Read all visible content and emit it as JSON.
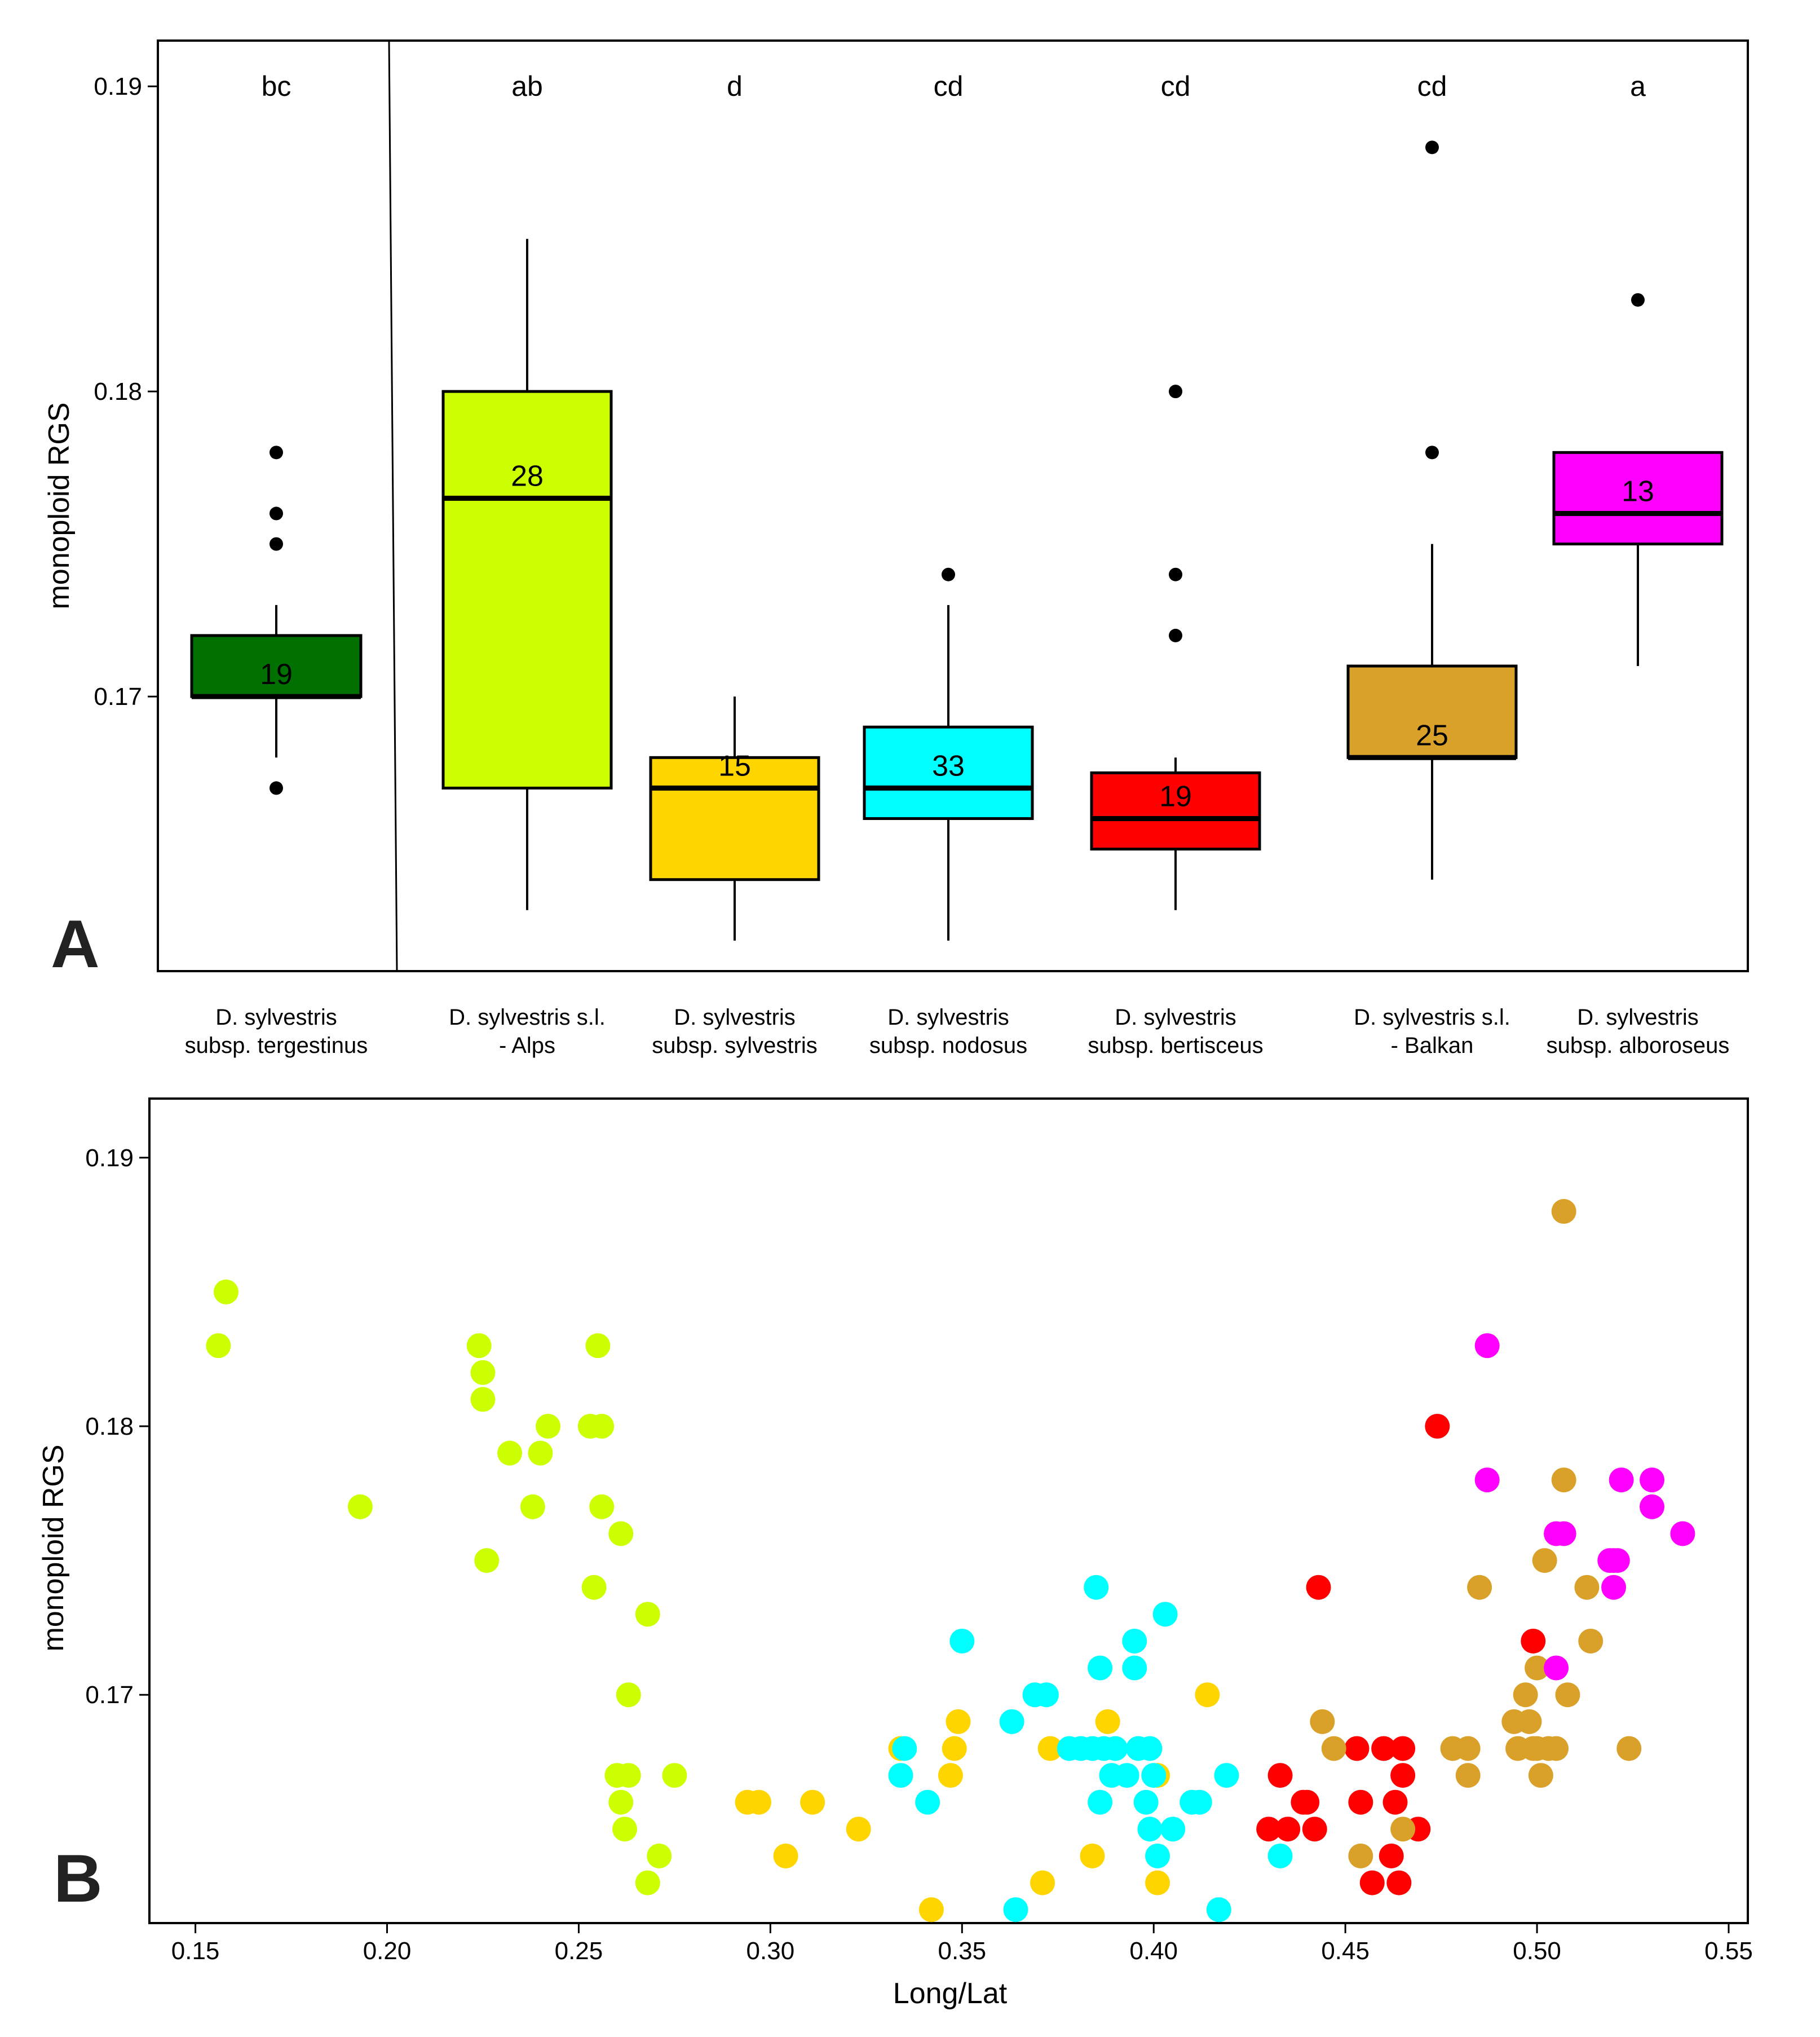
{
  "colors": {
    "tergestinus": "#007000",
    "alps": "#ccff00",
    "sylvestris": "#ffd500",
    "nodosus": "#00ffff",
    "bertisceus": "#ff0000",
    "balkan": "#d9a12a",
    "alboroseus": "#ff00ff"
  },
  "chart_data": [
    {
      "type": "box",
      "panel_label": "A",
      "xlabel": "",
      "ylabel": "monoploid RGS",
      "ylim": [
        0.161,
        0.1915
      ],
      "yticks": [
        "0.19",
        "0.18",
        "0.17"
      ],
      "ytick_values": [
        0.19,
        0.18,
        0.17
      ],
      "grid": false,
      "groups": [
        {
          "key": "tergestinus",
          "line1": "D. sylvestris",
          "line2": "subsp. tergestinus",
          "letter": "bc",
          "n": "19",
          "q1": 0.17,
          "median": 0.17,
          "q3": 0.172,
          "whisker_low": 0.168,
          "whisker_high": 0.173,
          "outliers": [
            0.178,
            0.176,
            0.175,
            0.167
          ]
        },
        {
          "key": "alps",
          "line1": "D. sylvestris s.l.",
          "line2": "- Alps",
          "letter": "ab",
          "n": "28",
          "q1": 0.167,
          "median": 0.1765,
          "q3": 0.18,
          "whisker_low": 0.163,
          "whisker_high": 0.185,
          "outliers": []
        },
        {
          "key": "sylvestris",
          "line1": "D. sylvestris",
          "line2": "subsp. sylvestris",
          "letter": "d",
          "n": "15",
          "q1": 0.164,
          "median": 0.167,
          "q3": 0.168,
          "whisker_low": 0.162,
          "whisker_high": 0.17,
          "outliers": []
        },
        {
          "key": "nodosus",
          "line1": "D. sylvestris",
          "line2": "subsp. nodosus",
          "letter": "cd",
          "n": "33",
          "q1": 0.166,
          "median": 0.167,
          "q3": 0.169,
          "whisker_low": 0.162,
          "whisker_high": 0.173,
          "outliers": [
            0.174
          ]
        },
        {
          "key": "bertisceus",
          "line1": "D. sylvestris",
          "line2": "subsp. bertisceus",
          "letter": "cd",
          "n": "19",
          "q1": 0.165,
          "median": 0.166,
          "q3": 0.1675,
          "whisker_low": 0.163,
          "whisker_high": 0.168,
          "outliers": [
            0.18,
            0.174,
            0.172
          ]
        },
        {
          "key": "balkan",
          "line1": "D. sylvestris s.l.",
          "line2": "- Balkan",
          "letter": "cd",
          "n": "25",
          "q1": 0.168,
          "median": 0.168,
          "q3": 0.171,
          "whisker_low": 0.164,
          "whisker_high": 0.175,
          "outliers": [
            0.188,
            0.178
          ]
        },
        {
          "key": "alboroseus",
          "line1": "D. sylvestris",
          "line2": "subsp. alboroseus",
          "letter": "a",
          "n": "13",
          "q1": 0.175,
          "median": 0.176,
          "q3": 0.178,
          "whisker_low": 0.171,
          "whisker_high": 0.178,
          "outliers": [
            0.183
          ]
        }
      ]
    },
    {
      "type": "scatter",
      "panel_label": "B",
      "xlabel": "Long/Lat",
      "ylabel": "monoploid RGS",
      "xlim": [
        0.138,
        0.555
      ],
      "ylim": [
        0.1615,
        0.1922
      ],
      "xticks": [
        "0.15",
        "0.20",
        "0.25",
        "0.30",
        "0.35",
        "0.40",
        "0.45",
        "0.50",
        "0.55"
      ],
      "xtick_values": [
        0.15,
        0.2,
        0.25,
        0.3,
        0.35,
        0.4,
        0.45,
        0.5,
        0.55
      ],
      "yticks": [
        "0.19",
        "0.18",
        "0.17"
      ],
      "ytick_values": [
        0.19,
        0.18,
        0.17
      ],
      "grid": false,
      "series": [
        {
          "key": "alps",
          "points": [
            [
              0.156,
              0.183
            ],
            [
              0.158,
              0.185
            ],
            [
              0.193,
              0.177
            ],
            [
              0.224,
              0.183
            ],
            [
              0.225,
              0.182
            ],
            [
              0.225,
              0.181
            ],
            [
              0.226,
              0.175
            ],
            [
              0.232,
              0.179
            ],
            [
              0.238,
              0.177
            ],
            [
              0.24,
              0.179
            ],
            [
              0.242,
              0.18
            ],
            [
              0.253,
              0.18
            ],
            [
              0.254,
              0.174
            ],
            [
              0.255,
              0.183
            ],
            [
              0.256,
              0.18
            ],
            [
              0.256,
              0.177
            ],
            [
              0.26,
              0.167
            ],
            [
              0.261,
              0.176
            ],
            [
              0.261,
              0.166
            ],
            [
              0.262,
              0.165
            ],
            [
              0.263,
              0.167
            ],
            [
              0.263,
              0.17
            ],
            [
              0.268,
              0.173
            ],
            [
              0.268,
              0.163
            ],
            [
              0.271,
              0.164
            ],
            [
              0.275,
              0.167
            ]
          ]
        },
        {
          "key": "sylvestris",
          "points": [
            [
              0.294,
              0.166
            ],
            [
              0.297,
              0.166
            ],
            [
              0.304,
              0.164
            ],
            [
              0.311,
              0.166
            ],
            [
              0.323,
              0.165
            ],
            [
              0.334,
              0.168
            ],
            [
              0.342,
              0.162
            ],
            [
              0.347,
              0.167
            ],
            [
              0.348,
              0.168
            ],
            [
              0.349,
              0.169
            ],
            [
              0.371,
              0.163
            ],
            [
              0.373,
              0.168
            ],
            [
              0.384,
              0.164
            ],
            [
              0.388,
              0.169
            ],
            [
              0.401,
              0.167
            ],
            [
              0.401,
              0.163
            ],
            [
              0.414,
              0.17
            ]
          ]
        },
        {
          "key": "nodosus",
          "points": [
            [
              0.334,
              0.167
            ],
            [
              0.335,
              0.168
            ],
            [
              0.341,
              0.166
            ],
            [
              0.35,
              0.172
            ],
            [
              0.363,
              0.169
            ],
            [
              0.364,
              0.162
            ],
            [
              0.369,
              0.17
            ],
            [
              0.372,
              0.17
            ],
            [
              0.378,
              0.168
            ],
            [
              0.381,
              0.168
            ],
            [
              0.384,
              0.168
            ],
            [
              0.385,
              0.174
            ],
            [
              0.386,
              0.171
            ],
            [
              0.386,
              0.166
            ],
            [
              0.387,
              0.168
            ],
            [
              0.389,
              0.167
            ],
            [
              0.39,
              0.168
            ],
            [
              0.393,
              0.167
            ],
            [
              0.395,
              0.171
            ],
            [
              0.395,
              0.172
            ],
            [
              0.396,
              0.168
            ],
            [
              0.398,
              0.166
            ],
            [
              0.399,
              0.165
            ],
            [
              0.399,
              0.168
            ],
            [
              0.401,
              0.164
            ],
            [
              0.403,
              0.173
            ],
            [
              0.405,
              0.165
            ],
            [
              0.41,
              0.166
            ],
            [
              0.412,
              0.166
            ],
            [
              0.417,
              0.162
            ],
            [
              0.419,
              0.167
            ],
            [
              0.433,
              0.164
            ],
            [
              0.4,
              0.167
            ]
          ]
        },
        {
          "key": "bertisceus",
          "points": [
            [
              0.43,
              0.165
            ],
            [
              0.433,
              0.167
            ],
            [
              0.435,
              0.165
            ],
            [
              0.439,
              0.166
            ],
            [
              0.44,
              0.166
            ],
            [
              0.442,
              0.165
            ],
            [
              0.443,
              0.174
            ],
            [
              0.454,
              0.166
            ],
            [
              0.457,
              0.163
            ],
            [
              0.46,
              0.168
            ],
            [
              0.462,
              0.164
            ],
            [
              0.463,
              0.166
            ],
            [
              0.464,
              0.163
            ],
            [
              0.465,
              0.167
            ],
            [
              0.465,
              0.168
            ],
            [
              0.469,
              0.165
            ],
            [
              0.474,
              0.18
            ],
            [
              0.499,
              0.172
            ],
            [
              0.453,
              0.168
            ]
          ]
        },
        {
          "key": "balkan",
          "points": [
            [
              0.444,
              0.169
            ],
            [
              0.447,
              0.168
            ],
            [
              0.454,
              0.164
            ],
            [
              0.465,
              0.165
            ],
            [
              0.478,
              0.168
            ],
            [
              0.482,
              0.167
            ],
            [
              0.482,
              0.168
            ],
            [
              0.485,
              0.174
            ],
            [
              0.494,
              0.169
            ],
            [
              0.495,
              0.168
            ],
            [
              0.497,
              0.17
            ],
            [
              0.498,
              0.169
            ],
            [
              0.499,
              0.168
            ],
            [
              0.5,
              0.171
            ],
            [
              0.5,
              0.168
            ],
            [
              0.501,
              0.167
            ],
            [
              0.502,
              0.175
            ],
            [
              0.505,
              0.168
            ],
            [
              0.507,
              0.178
            ],
            [
              0.507,
              0.188
            ],
            [
              0.508,
              0.17
            ],
            [
              0.513,
              0.174
            ],
            [
              0.514,
              0.172
            ],
            [
              0.524,
              0.168
            ],
            [
              0.503,
              0.168
            ]
          ]
        },
        {
          "key": "alboroseus",
          "points": [
            [
              0.487,
              0.183
            ],
            [
              0.487,
              0.178
            ],
            [
              0.505,
              0.171
            ],
            [
              0.505,
              0.176
            ],
            [
              0.507,
              0.176
            ],
            [
              0.519,
              0.175
            ],
            [
              0.52,
              0.174
            ],
            [
              0.521,
              0.175
            ],
            [
              0.522,
              0.178
            ],
            [
              0.53,
              0.178
            ],
            [
              0.53,
              0.177
            ],
            [
              0.538,
              0.176
            ],
            [
              0.52,
              0.175
            ]
          ]
        }
      ]
    }
  ]
}
